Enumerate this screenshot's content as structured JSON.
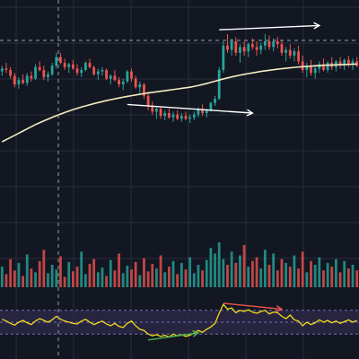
{
  "colors": {
    "background": "#131722",
    "grid": "#2a2e39",
    "up": "#26a69a",
    "down": "#ef5350",
    "moving_average": "#f5ecc0",
    "annotation_arrow": "#ffffff",
    "oscillator_line": "#f2dc1d",
    "oscillator_band": "#2d2a4a",
    "oscillator_level": "#7b6fb0",
    "divergence_bearish": "#ef5350",
    "divergence_bullish": "#4caf50",
    "crosshair": "#9aa0ab"
  },
  "chart_data": [
    {
      "type": "candlestick",
      "title": "",
      "grid": true,
      "price_range": [
        0,
        100
      ],
      "candles": [
        [
          69,
          73,
          66,
          71
        ],
        [
          71,
          75,
          68,
          70
        ],
        [
          70,
          72,
          64,
          66
        ],
        [
          66,
          68,
          58,
          60
        ],
        [
          60,
          65,
          57,
          63
        ],
        [
          63,
          67,
          60,
          61
        ],
        [
          61,
          68,
          59,
          66
        ],
        [
          66,
          69,
          62,
          64
        ],
        [
          64,
          74,
          63,
          72
        ],
        [
          72,
          76,
          69,
          70
        ],
        [
          70,
          73,
          63,
          65
        ],
        [
          65,
          69,
          62,
          67
        ],
        [
          67,
          75,
          66,
          73
        ],
        [
          73,
          82,
          71,
          79
        ],
        [
          79,
          82,
          74,
          75
        ],
        [
          75,
          78,
          70,
          72
        ],
        [
          72,
          75,
          68,
          74
        ],
        [
          74,
          77,
          70,
          71
        ],
        [
          71,
          74,
          66,
          68
        ],
        [
          68,
          72,
          65,
          70
        ],
        [
          70,
          76,
          69,
          75
        ],
        [
          75,
          78,
          71,
          72
        ],
        [
          72,
          73,
          66,
          67
        ],
        [
          67,
          71,
          63,
          69
        ],
        [
          69,
          72,
          66,
          70
        ],
        [
          70,
          71,
          63,
          64
        ],
        [
          64,
          67,
          60,
          66
        ],
        [
          66,
          70,
          62,
          63
        ],
        [
          63,
          65,
          58,
          60
        ],
        [
          60,
          64,
          56,
          62
        ],
        [
          62,
          70,
          61,
          69
        ],
        [
          69,
          71,
          62,
          64
        ],
        [
          64,
          66,
          57,
          58
        ],
        [
          58,
          62,
          54,
          60
        ],
        [
          60,
          61,
          50,
          52
        ],
        [
          52,
          55,
          42,
          45
        ],
        [
          45,
          48,
          39,
          41
        ],
        [
          41,
          44,
          36,
          43
        ],
        [
          43,
          44,
          36,
          38
        ],
        [
          38,
          42,
          35,
          40
        ],
        [
          40,
          43,
          36,
          37
        ],
        [
          37,
          41,
          34,
          39
        ],
        [
          39,
          42,
          35,
          36
        ],
        [
          36,
          40,
          34,
          38
        ],
        [
          38,
          41,
          35,
          36
        ],
        [
          36,
          39,
          33,
          37
        ],
        [
          37,
          41,
          35,
          39
        ],
        [
          39,
          44,
          37,
          43
        ],
        [
          43,
          46,
          38,
          40
        ],
        [
          40,
          43,
          37,
          42
        ],
        [
          42,
          48,
          41,
          47
        ],
        [
          47,
          52,
          45,
          50
        ],
        [
          50,
          72,
          49,
          70
        ],
        [
          70,
          90,
          68,
          87
        ],
        [
          87,
          95,
          82,
          84
        ],
        [
          84,
          92,
          80,
          90
        ],
        [
          90,
          93,
          80,
          82
        ],
        [
          82,
          88,
          75,
          86
        ],
        [
          86,
          90,
          80,
          83
        ],
        [
          83,
          89,
          79,
          88
        ],
        [
          88,
          92,
          84,
          86
        ],
        [
          86,
          90,
          80,
          84
        ],
        [
          84,
          89,
          81,
          87
        ],
        [
          87,
          95,
          84,
          90
        ],
        [
          90,
          94,
          84,
          86
        ],
        [
          86,
          92,
          83,
          90
        ],
        [
          90,
          93,
          85,
          88
        ],
        [
          88,
          91,
          80,
          82
        ],
        [
          82,
          86,
          76,
          84
        ],
        [
          84,
          88,
          78,
          80
        ],
        [
          80,
          85,
          76,
          83
        ],
        [
          83,
          87,
          74,
          76
        ],
        [
          76,
          80,
          68,
          70
        ],
        [
          70,
          75,
          65,
          73
        ],
        [
          73,
          77,
          66,
          68
        ],
        [
          68,
          73,
          64,
          71
        ],
        [
          71,
          76,
          68,
          74
        ],
        [
          74,
          78,
          69,
          70
        ],
        [
          70,
          76,
          68,
          75
        ],
        [
          75,
          79,
          70,
          72
        ],
        [
          72,
          77,
          69,
          76
        ],
        [
          76,
          79,
          71,
          73
        ],
        [
          73,
          78,
          70,
          77
        ],
        [
          77,
          80,
          72,
          74
        ],
        [
          74,
          78,
          70,
          76
        ],
        [
          76,
          79,
          72,
          73
        ]
      ],
      "moving_average": [
        20,
        21.5,
        23,
        24.5,
        26,
        27.5,
        29,
        30.5,
        32,
        33.3,
        34.6,
        35.8,
        37,
        38.2,
        39.3,
        40.4,
        41.4,
        42.4,
        43.3,
        44.2,
        45,
        45.8,
        46.6,
        47.3,
        48,
        48.7,
        49.3,
        49.9,
        50.5,
        51.1,
        51.6,
        52.1,
        52.6,
        53.1,
        53.6,
        54,
        54.4,
        54.8,
        55.2,
        55.6,
        56,
        56.4,
        56.8,
        57.2,
        57.6,
        58,
        58.6,
        59.2,
        59.9,
        60.6,
        61.4,
        62.2,
        63,
        63.8,
        64.5,
        65.2,
        65.8,
        66.4,
        67,
        67.5,
        68,
        68.5,
        69,
        69.4,
        69.8,
        70.2,
        70.6,
        70.9,
        71.2,
        71.5,
        71.8,
        72.1,
        72.3,
        72.5,
        72.7,
        72.9,
        73.1,
        73.3,
        73.4,
        73.5,
        73.6,
        73.7,
        73.8,
        73.9,
        74,
        74.1
      ],
      "trendlines": [
        {
          "name": "",
          "from": [
            52,
            98
          ],
          "to": [
            76,
            101
          ],
          "arrow": true
        },
        {
          "name": "",
          "from": [
            30,
            46
          ],
          "to": [
            60,
            40
          ],
          "arrow": true
        }
      ]
    },
    {
      "type": "bar",
      "title": "",
      "values": [
        22,
        14,
        30,
        18,
        26,
        12,
        35,
        20,
        16,
        28,
        40,
        15,
        24,
        19,
        33,
        11,
        27,
        17,
        22,
        38,
        14,
        25,
        30,
        16,
        21,
        12,
        29,
        18,
        36,
        15,
        23,
        19,
        27,
        13,
        31,
        17,
        25,
        20,
        34,
        16,
        22,
        28,
        14,
        26,
        19,
        32,
        15,
        24,
        18,
        29,
        42,
        36,
        48,
        30,
        24,
        38,
        26,
        34,
        45,
        22,
        28,
        32,
        20,
        40,
        24,
        36,
        18,
        30,
        26,
        22,
        34,
        20,
        38,
        16,
        28,
        24,
        32,
        18,
        26,
        22,
        30,
        16,
        28,
        20,
        24,
        18
      ],
      "directions": [
        1,
        0,
        0,
        0,
        1,
        0,
        1,
        0,
        1,
        0,
        0,
        1,
        1,
        1,
        0,
        0,
        1,
        0,
        0,
        1,
        1,
        0,
        0,
        1,
        1,
        0,
        1,
        0,
        0,
        1,
        1,
        0,
        0,
        1,
        0,
        0,
        0,
        1,
        0,
        1,
        0,
        1,
        0,
        1,
        0,
        1,
        1,
        1,
        0,
        1,
        1,
        1,
        1,
        1,
        0,
        1,
        0,
        1,
        0,
        1,
        0,
        0,
        1,
        1,
        0,
        1,
        0,
        0,
        1,
        0,
        1,
        0,
        0,
        1,
        0,
        1,
        1,
        0,
        1,
        0,
        1,
        0,
        1,
        0,
        1,
        0
      ]
    },
    {
      "type": "line",
      "title": "",
      "ylim": [
        0,
        100
      ],
      "levels": [
        70,
        50,
        30
      ],
      "values": [
        55,
        52,
        48,
        45,
        50,
        53,
        49,
        46,
        52,
        56,
        53,
        50,
        54,
        60,
        55,
        52,
        50,
        48,
        47,
        52,
        55,
        50,
        46,
        49,
        52,
        47,
        44,
        48,
        43,
        41,
        48,
        52,
        44,
        38,
        36,
        30,
        27,
        29,
        26,
        28,
        25,
        30,
        27,
        29,
        26,
        28,
        32,
        36,
        33,
        38,
        42,
        48,
        65,
        80,
        72,
        74,
        66,
        70,
        68,
        71,
        67,
        65,
        68,
        70,
        64,
        67,
        66,
        60,
        56,
        62,
        54,
        52,
        44,
        50,
        46,
        49,
        54,
        50,
        53,
        49,
        52,
        48,
        51,
        54,
        50,
        53
      ],
      "divergences": [
        {
          "name": "",
          "from": [
            53,
            82
          ],
          "to": [
            67,
            72
          ],
          "arrow": true
        },
        {
          "name": "",
          "from": [
            35,
            20
          ],
          "to": [
            47,
            32
          ],
          "arrow": true
        }
      ]
    }
  ]
}
